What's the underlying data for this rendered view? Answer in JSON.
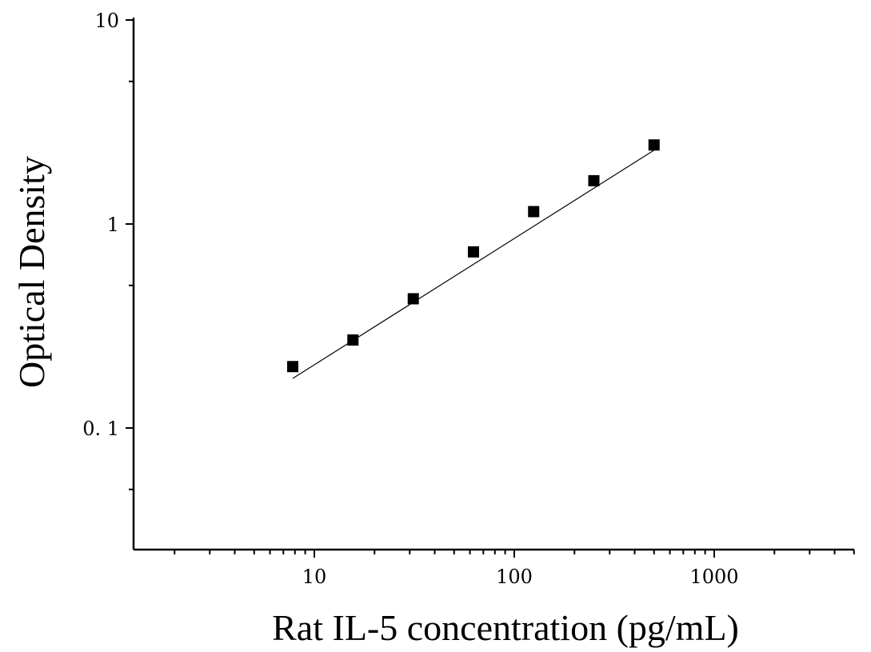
{
  "chart_data": {
    "type": "scatter",
    "title": "",
    "xlabel": "Rat IL-5 concentration (pg/mL)",
    "ylabel": "Optical Density",
    "x_scale": "log",
    "y_scale": "log",
    "xlim": [
      1.1,
      5500
    ],
    "ylim": [
      0.025,
      10
    ],
    "x_ticks": [
      {
        "value": 10,
        "label": "10"
      },
      {
        "value": 100,
        "label": "100"
      },
      {
        "value": 1000,
        "label": "1000"
      }
    ],
    "y_ticks": [
      {
        "value": 0.1,
        "label": "0. 1"
      },
      {
        "value": 1,
        "label": "1"
      },
      {
        "value": 10,
        "label": "10"
      }
    ],
    "grid": false,
    "legend": "none",
    "marker": "square",
    "series": [
      {
        "x": [
          7.8,
          15.6,
          31.25,
          62.5,
          125,
          250,
          500
        ],
        "y": [
          0.2,
          0.27,
          0.43,
          0.73,
          1.15,
          1.63,
          2.44
        ]
      }
    ],
    "fit_line": {
      "x": [
        7.8,
        500
      ],
      "y": [
        0.175,
        2.3
      ]
    }
  }
}
